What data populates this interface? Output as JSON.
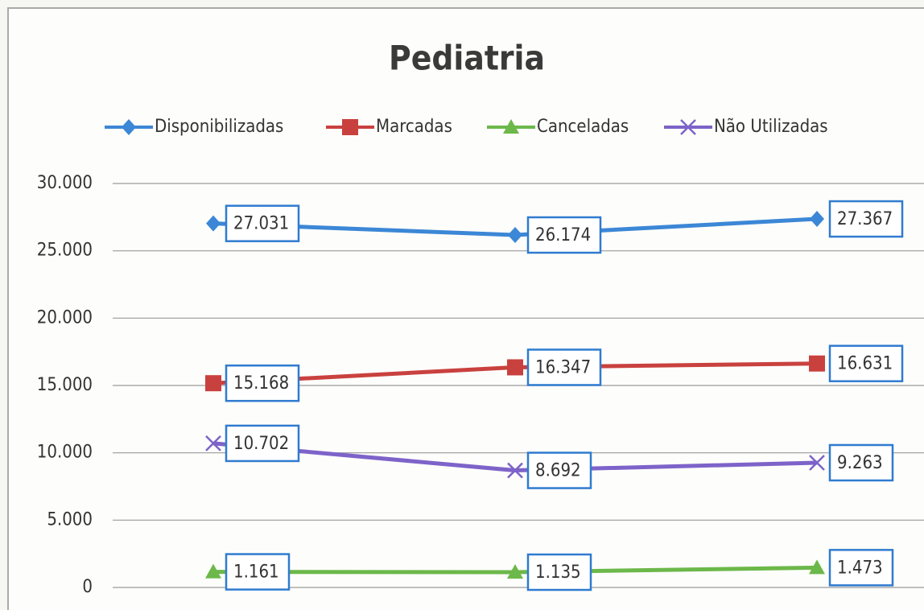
{
  "chart_data": {
    "type": "line",
    "title": "Pediatria",
    "categories": [
      null,
      null,
      null
    ],
    "series": [
      {
        "name": "Disponibilizadas",
        "color": "#3c87d6",
        "marker": "diamond",
        "values": [
          27031,
          26174,
          27367
        ],
        "value_labels": [
          "27.031",
          "26.174",
          "27.367"
        ]
      },
      {
        "name": "Marcadas",
        "color": "#c9413e",
        "marker": "square",
        "values": [
          15168,
          16347,
          16631
        ],
        "value_labels": [
          "15.168",
          "16.347",
          "16.631"
        ]
      },
      {
        "name": "Canceladas",
        "color": "#6cb84a",
        "marker": "triangle",
        "values": [
          1161,
          1135,
          1473
        ],
        "value_labels": [
          "1.161",
          "1.135",
          "1.473"
        ]
      },
      {
        "name": "Não Utilizadas",
        "color": "#7d63c9",
        "marker": "x",
        "values": [
          10702,
          8692,
          9263
        ],
        "value_labels": [
          "10.702",
          "8.692",
          "9.263"
        ]
      }
    ],
    "ylim": [
      0,
      30000
    ],
    "yticks": [
      0,
      {
        "value": 5000,
        "label": "5.000"
      },
      {
        "value": 10000,
        "label": "10.000"
      },
      {
        "value": 15000,
        "label": "15.000"
      },
      {
        "value": 20000,
        "label": "20.000"
      },
      {
        "value": 25000,
        "label": "25.000"
      },
      {
        "value": 30000,
        "label": "30.000"
      }
    ],
    "grid": true,
    "legend": "top"
  }
}
